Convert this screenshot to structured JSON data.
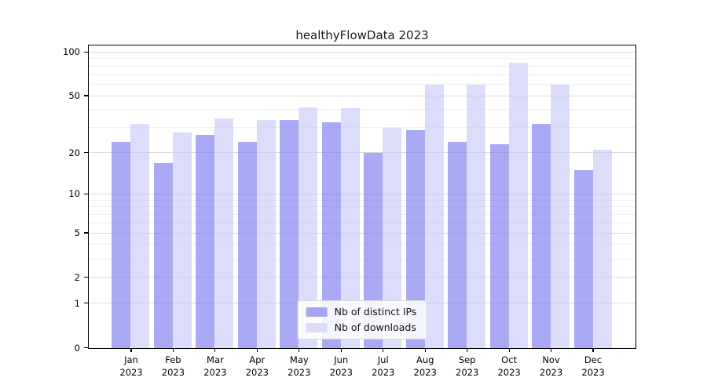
{
  "title": "healthyFlowData 2023",
  "chart_data": {
    "type": "bar",
    "title": "healthyFlowData 2023",
    "scale": "log1p",
    "grid": true,
    "legend_position": "lower center",
    "categories": [
      "Jan",
      "Feb",
      "Mar",
      "Apr",
      "May",
      "Jun",
      "Jul",
      "Aug",
      "Sep",
      "Oct",
      "Nov",
      "Dec"
    ],
    "year_label": "2023",
    "series": [
      {
        "name": "Nb of distinct IPs",
        "color": "rgba(116,116,238,0.62)",
        "legend_color": "#a6a6f0",
        "values": [
          24,
          17,
          27,
          24,
          34,
          33,
          20,
          29,
          24,
          23,
          32,
          15
        ]
      },
      {
        "name": "Nb of downloads",
        "color": "rgba(199,199,248,0.62)",
        "legend_color": "#dbdbf8",
        "values": [
          32,
          28,
          35,
          34,
          42,
          41,
          30,
          60,
          60,
          85,
          60,
          21
        ]
      }
    ],
    "y_ticks": [
      0,
      1,
      2,
      5,
      10,
      20,
      50,
      100
    ],
    "y_minor_ticks": [
      3,
      4,
      6,
      7,
      8,
      9,
      30,
      40,
      60,
      70,
      80,
      90
    ],
    "y_max": 110,
    "ylim": [
      0,
      110
    ],
    "xlabel": "",
    "ylabel": ""
  }
}
